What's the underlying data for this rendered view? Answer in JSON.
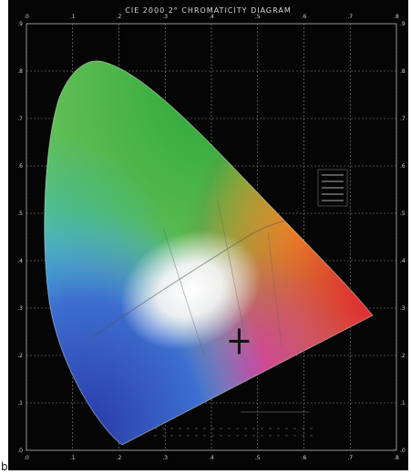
{
  "title": "CIE 2000 2° CHROMATICITY DIAGRAM",
  "corner_label": "b",
  "chart_data": {
    "type": "diagram",
    "x_ticks": [
      ".0",
      ".1",
      ".2",
      ".3",
      ".4",
      ".5",
      ".6",
      ".7",
      ".8"
    ],
    "y_ticks": [
      ".9",
      ".8",
      ".7",
      ".6",
      ".5",
      ".4",
      ".3",
      ".2",
      ".1",
      ".0"
    ],
    "xlim": [
      0,
      0.8
    ],
    "ylim": [
      0,
      0.9
    ],
    "grid": true,
    "marker": {
      "symbol": "+",
      "x": 0.46,
      "y": 0.23
    }
  }
}
